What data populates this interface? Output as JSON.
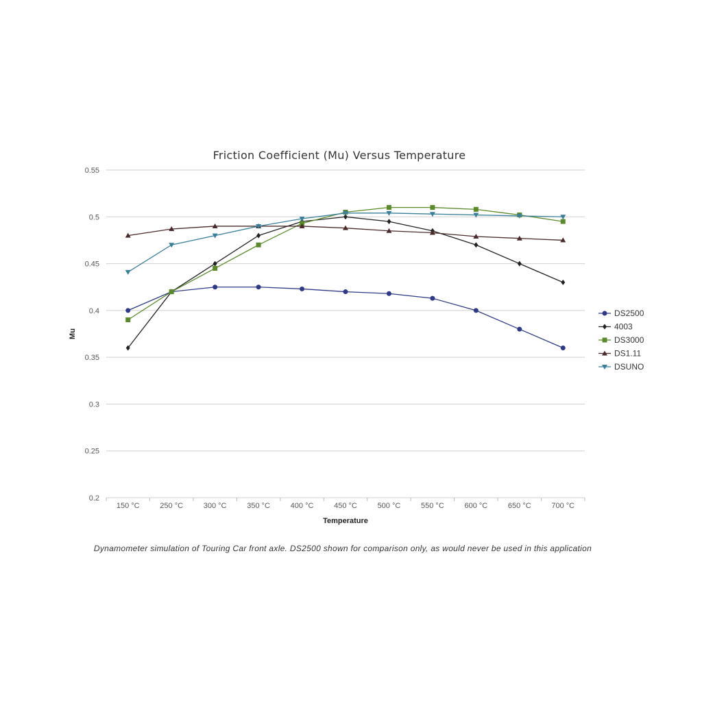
{
  "chart_data": {
    "type": "line",
    "title": "Friction Coefficient (Mu) Versus Temperature",
    "xlabel": "Temperature",
    "ylabel": "Mu",
    "categories": [
      "150 °C",
      "250 °C",
      "300 °C",
      "350 °C",
      "400 °C",
      "450 °C",
      "500 °C",
      "550 °C",
      "600 °C",
      "650 °C",
      "700 °C"
    ],
    "ylim": [
      0.2,
      0.55
    ],
    "yticks": [
      0.2,
      0.25,
      0.3,
      0.35,
      0.4,
      0.45,
      0.5,
      0.55
    ],
    "ytick_labels": [
      "0.2",
      "0.25",
      "0.3",
      "0.35",
      "0.4",
      "0.45",
      "0.5",
      "0.55"
    ],
    "grid": true,
    "legend_position": "right",
    "series": [
      {
        "name": "DS2500",
        "color": "#2e3a87",
        "marker": "circle",
        "values": [
          0.4,
          0.42,
          0.425,
          0.425,
          0.423,
          0.42,
          0.418,
          0.413,
          0.4,
          0.38,
          0.36
        ]
      },
      {
        "name": "4003",
        "color": "#222222",
        "marker": "diamond",
        "values": [
          0.36,
          0.42,
          0.45,
          0.48,
          0.495,
          0.5,
          0.495,
          0.485,
          0.47,
          0.45,
          0.43
        ]
      },
      {
        "name": "DS3000",
        "color": "#5a8a2a",
        "marker": "square",
        "values": [
          0.39,
          0.42,
          0.445,
          0.47,
          0.493,
          0.505,
          0.51,
          0.51,
          0.508,
          0.502,
          0.495
        ]
      },
      {
        "name": "DS1.11",
        "color": "#4a2a2a",
        "marker": "triangle-up",
        "values": [
          0.48,
          0.487,
          0.49,
          0.49,
          0.49,
          0.488,
          0.485,
          0.483,
          0.479,
          0.477,
          0.475
        ]
      },
      {
        "name": "DSUNO",
        "color": "#3a7f9a",
        "marker": "triangle-down",
        "values": [
          0.441,
          0.47,
          0.48,
          0.49,
          0.498,
          0.504,
          0.504,
          0.503,
          0.502,
          0.501,
          0.5
        ]
      }
    ]
  },
  "caption": "Dynamometer simulation of Touring Car front axle. DS2500 shown for comparison only, as would never be used in this application"
}
